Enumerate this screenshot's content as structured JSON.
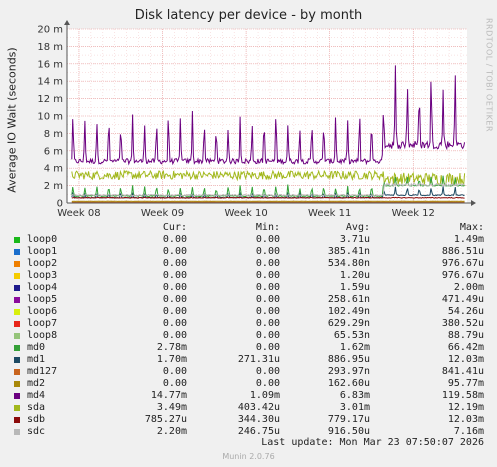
{
  "chart_data": {
    "type": "line",
    "title": "Disk latency per device - by month",
    "ylabel": "Average IO Wait (seconds)",
    "xlabel": "",
    "ylim": [
      0,
      0.02
    ],
    "yticks": [
      0,
      0.002,
      0.004,
      0.006,
      0.008,
      0.01,
      0.012,
      0.014,
      0.016,
      0.018,
      0.02
    ],
    "ytick_labels": [
      "0",
      "2 m",
      "4 m",
      "6 m",
      "8 m",
      "10 m",
      "12 m",
      "14 m",
      "16 m",
      "18 m",
      "20 m"
    ],
    "xticks": [
      0,
      7,
      14,
      21,
      28
    ],
    "xtick_labels": [
      "Week 08",
      "Week 09",
      "Week 10",
      "Week 11",
      "Week 12"
    ],
    "xlim": [
      -1,
      32.5
    ],
    "grid": true,
    "series": [
      {
        "name": "md4",
        "color": "#6b0080",
        "kind": "spiky",
        "base": 0.0048,
        "peak": 0.0098,
        "late_base": 0.0067,
        "late_peak": 0.0145,
        "period": 1.0
      },
      {
        "name": "sda",
        "color": "#a2b81c",
        "kind": "noisy",
        "base": 0.0032,
        "amp": 0.0005,
        "late_base": 0.0028,
        "late_amp": 0.0007
      },
      {
        "name": "md0",
        "color": "#35a138",
        "kind": "spiky",
        "base": 0.0008,
        "peak": 0.002,
        "late_base": 0.002,
        "late_peak": 0.003,
        "period": 1.0
      },
      {
        "name": "md1",
        "color": "#1d4a63",
        "kind": "spiky",
        "base": 0.0006,
        "peak": 0.0011,
        "late_base": 0.0009,
        "late_peak": 0.0018,
        "period": 1.0
      },
      {
        "name": "sdb",
        "color": "#8b0a0a",
        "kind": "flat",
        "base": 0.0006,
        "late_base": 0.0006
      },
      {
        "name": "sdc",
        "color": "#b8b8b8",
        "kind": "flat",
        "base": 0.0009,
        "late_base": 0.0021
      },
      {
        "name": "md127",
        "color": "#c8641e",
        "kind": "flat",
        "base": 0.0001,
        "late_base": 0.0001
      },
      {
        "name": "md2",
        "color": "#a8880a",
        "kind": "flat",
        "base": 0.0002,
        "late_base": 0.0002
      }
    ]
  },
  "legend": {
    "headers": {
      "cur": "Cur:",
      "min": "Min:",
      "avg": "Avg:",
      "max": "Max:"
    },
    "rows": [
      {
        "name": "loop0",
        "color": "#1ab81a",
        "cur": "0.00",
        "min": "0.00",
        "avg": "3.71u",
        "max": "1.49m"
      },
      {
        "name": "loop1",
        "color": "#1a6ecc",
        "cur": "0.00",
        "min": "0.00",
        "avg": "385.41n",
        "max": "886.51u"
      },
      {
        "name": "loop2",
        "color": "#ee7f00",
        "cur": "0.00",
        "min": "0.00",
        "avg": "534.80n",
        "max": "976.67u"
      },
      {
        "name": "loop3",
        "color": "#f5cc00",
        "cur": "0.00",
        "min": "0.00",
        "avg": "1.20u",
        "max": "976.67u"
      },
      {
        "name": "loop4",
        "color": "#1e1a8c",
        "cur": "0.00",
        "min": "0.00",
        "avg": "1.59u",
        "max": "2.00m"
      },
      {
        "name": "loop5",
        "color": "#8a0a9c",
        "cur": "0.00",
        "min": "0.00",
        "avg": "258.61n",
        "max": "471.49u"
      },
      {
        "name": "loop6",
        "color": "#d8ef0c",
        "cur": "0.00",
        "min": "0.00",
        "avg": "102.49n",
        "max": "54.26u"
      },
      {
        "name": "loop7",
        "color": "#e8261a",
        "cur": "0.00",
        "min": "0.00",
        "avg": "629.29n",
        "max": "380.52u"
      },
      {
        "name": "loop8",
        "color": "#95c47a",
        "cur": "0.00",
        "min": "0.00",
        "avg": "65.53n",
        "max": "88.79u"
      },
      {
        "name": "md0",
        "color": "#35a138",
        "cur": "2.78m",
        "min": "0.00",
        "avg": "1.62m",
        "max": "66.42m"
      },
      {
        "name": "md1",
        "color": "#1d4a63",
        "cur": "1.70m",
        "min": "271.31u",
        "avg": "886.95u",
        "max": "12.03m"
      },
      {
        "name": "md127",
        "color": "#c8641e",
        "cur": "0.00",
        "min": "0.00",
        "avg": "293.97n",
        "max": "841.41u"
      },
      {
        "name": "md2",
        "color": "#a8880a",
        "cur": "0.00",
        "min": "0.00",
        "avg": "162.60u",
        "max": "95.77m"
      },
      {
        "name": "md4",
        "color": "#6b0080",
        "cur": "14.77m",
        "min": "1.09m",
        "avg": "6.83m",
        "max": "119.58m"
      },
      {
        "name": "sda",
        "color": "#a2b81c",
        "cur": "3.49m",
        "min": "403.42u",
        "avg": "3.01m",
        "max": "12.19m"
      },
      {
        "name": "sdb",
        "color": "#8b0a0a",
        "cur": "785.27u",
        "min": "344.30u",
        "avg": "779.17u",
        "max": "12.03m"
      },
      {
        "name": "sdc",
        "color": "#b8b8b8",
        "cur": "2.20m",
        "min": "246.75u",
        "avg": "916.50u",
        "max": "7.16m"
      }
    ]
  },
  "footer": {
    "last_update": "Last update: Mon Mar 23 07:50:07 2026",
    "munin": "Munin 2.0.76"
  },
  "side_text": "RRDTOOL / TOBI OETIKER"
}
